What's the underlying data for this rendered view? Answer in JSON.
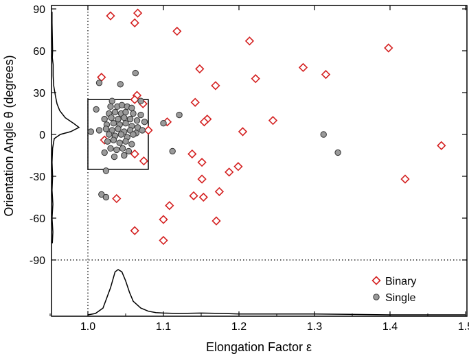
{
  "chart_data": {
    "type": "scatter",
    "xlabel": "Elongation Factor ε",
    "ylabel": "Orientation Angle θ (degrees)",
    "xlim": [
      0.95,
      1.5
    ],
    "ylim": [
      -90,
      90
    ],
    "x_ticks": [
      1.0,
      1.1,
      1.2,
      1.3,
      1.4,
      1.5
    ],
    "x_tick_labels": [
      "1.0",
      "1.1",
      "1.2",
      "1.3",
      "1.4",
      "1.5"
    ],
    "y_ticks": [
      90,
      60,
      30,
      0,
      -30,
      -60,
      -90
    ],
    "y_tick_labels": [
      "90",
      "60",
      "30",
      "0",
      "-30",
      "-60",
      "-90"
    ],
    "reference_lines": {
      "x": 1.0,
      "y": -90
    },
    "region_box": {
      "x": [
        1.0,
        1.08
      ],
      "y": [
        -25,
        25
      ]
    },
    "legend_position": "bottom-right",
    "series": [
      {
        "name": "Binary",
        "marker": "diamond",
        "color": "#d42020",
        "points": [
          [
            1.03,
            85
          ],
          [
            1.066,
            87
          ],
          [
            1.062,
            80
          ],
          [
            1.118,
            74
          ],
          [
            1.214,
            67
          ],
          [
            1.398,
            62
          ],
          [
            1.285,
            48
          ],
          [
            1.315,
            43
          ],
          [
            1.148,
            47
          ],
          [
            1.018,
            41
          ],
          [
            1.222,
            40
          ],
          [
            1.169,
            35
          ],
          [
            1.065,
            28
          ],
          [
            1.062,
            25
          ],
          [
            1.073,
            22
          ],
          [
            1.142,
            23
          ],
          [
            1.158,
            11
          ],
          [
            1.154,
            9
          ],
          [
            1.105,
            9
          ],
          [
            1.08,
            3
          ],
          [
            1.205,
            2
          ],
          [
            1.245,
            10
          ],
          [
            1.468,
            -8
          ],
          [
            1.022,
            -4
          ],
          [
            1.138,
            -14
          ],
          [
            1.062,
            -14
          ],
          [
            1.074,
            -19
          ],
          [
            1.151,
            -20
          ],
          [
            1.199,
            -23
          ],
          [
            1.187,
            -27
          ],
          [
            1.151,
            -32
          ],
          [
            1.42,
            -32
          ],
          [
            1.174,
            -41
          ],
          [
            1.14,
            -44
          ],
          [
            1.153,
            -45
          ],
          [
            1.038,
            -46
          ],
          [
            1.108,
            -51
          ],
          [
            1.1,
            -61
          ],
          [
            1.17,
            -62
          ],
          [
            1.062,
            -69
          ],
          [
            1.1,
            -76
          ]
        ]
      },
      {
        "name": "Single",
        "marker": "circle",
        "color": "#9a9a9a",
        "points": [
          [
            1.063,
            44
          ],
          [
            1.015,
            37
          ],
          [
            1.043,
            36
          ],
          [
            1.032,
            24
          ],
          [
            1.07,
            24
          ],
          [
            1.011,
            18
          ],
          [
            1.03,
            20
          ],
          [
            1.039,
            20
          ],
          [
            1.045,
            21
          ],
          [
            1.052,
            20
          ],
          [
            1.058,
            19
          ],
          [
            1.028,
            15
          ],
          [
            1.036,
            16
          ],
          [
            1.044,
            15
          ],
          [
            1.05,
            16
          ],
          [
            1.06,
            15
          ],
          [
            1.07,
            14
          ],
          [
            1.022,
            11
          ],
          [
            1.031,
            12
          ],
          [
            1.04,
            11
          ],
          [
            1.048,
            12
          ],
          [
            1.056,
            11
          ],
          [
            1.065,
            10
          ],
          [
            1.075,
            9
          ],
          [
            1.025,
            7
          ],
          [
            1.034,
            8
          ],
          [
            1.042,
            7
          ],
          [
            1.05,
            8
          ],
          [
            1.058,
            6
          ],
          [
            1.066,
            5
          ],
          [
            1.015,
            3
          ],
          [
            1.024,
            4
          ],
          [
            1.032,
            3
          ],
          [
            1.04,
            4
          ],
          [
            1.048,
            2
          ],
          [
            1.056,
            3
          ],
          [
            1.064,
            1
          ],
          [
            1.072,
            3
          ],
          [
            1.004,
            2
          ],
          [
            1.028,
            0
          ],
          [
            1.036,
            -1
          ],
          [
            1.044,
            0
          ],
          [
            1.052,
            -2
          ],
          [
            1.06,
            0
          ],
          [
            1.026,
            -5
          ],
          [
            1.034,
            -4
          ],
          [
            1.042,
            -6
          ],
          [
            1.05,
            -5
          ],
          [
            1.058,
            -7
          ],
          [
            1.03,
            -10
          ],
          [
            1.038,
            -11
          ],
          [
            1.046,
            -10
          ],
          [
            1.054,
            -12
          ],
          [
            1.022,
            -13
          ],
          [
            1.035,
            -16
          ],
          [
            1.048,
            -15
          ],
          [
            1.1,
            8
          ],
          [
            1.121,
            14
          ],
          [
            1.112,
            -12
          ],
          [
            1.024,
            -26
          ],
          [
            1.018,
            -43
          ],
          [
            1.024,
            -45
          ],
          [
            1.312,
            0
          ],
          [
            1.331,
            -13
          ]
        ]
      }
    ],
    "distribution_curves": {
      "y_marginal": [
        [
          -78,
          0.03
        ],
        [
          -70,
          0.05
        ],
        [
          -60,
          0.02
        ],
        [
          -50,
          0.05
        ],
        [
          -40,
          0.02
        ],
        [
          -30,
          0.04
        ],
        [
          -20,
          0.02
        ],
        [
          -10,
          0.04
        ],
        [
          -3,
          0.1
        ],
        [
          0,
          0.32
        ],
        [
          2,
          0.7
        ],
        [
          5,
          1.0
        ],
        [
          8,
          0.8
        ],
        [
          12,
          0.5
        ],
        [
          17,
          0.3
        ],
        [
          22,
          0.2
        ],
        [
          28,
          0.14
        ],
        [
          35,
          0.08
        ],
        [
          42,
          0.06
        ],
        [
          50,
          0.06
        ],
        [
          55,
          0.03
        ],
        [
          60,
          0.04
        ],
        [
          70,
          0.03
        ],
        [
          80,
          0.02
        ],
        [
          88,
          0.02
        ]
      ],
      "x_marginal": [
        [
          1.0,
          0.0
        ],
        [
          1.01,
          0.03
        ],
        [
          1.02,
          0.15
        ],
        [
          1.03,
          0.6
        ],
        [
          1.036,
          0.95
        ],
        [
          1.04,
          1.0
        ],
        [
          1.045,
          0.95
        ],
        [
          1.05,
          0.75
        ],
        [
          1.055,
          0.5
        ],
        [
          1.06,
          0.3
        ],
        [
          1.07,
          0.15
        ],
        [
          1.08,
          0.08
        ],
        [
          1.09,
          0.05
        ],
        [
          1.1,
          0.04
        ],
        [
          1.12,
          0.03
        ],
        [
          1.15,
          0.04
        ],
        [
          1.18,
          0.03
        ],
        [
          1.2,
          0.02
        ],
        [
          1.3,
          0.02
        ],
        [
          1.4,
          0.0
        ],
        [
          1.5,
          0.0
        ]
      ]
    }
  }
}
